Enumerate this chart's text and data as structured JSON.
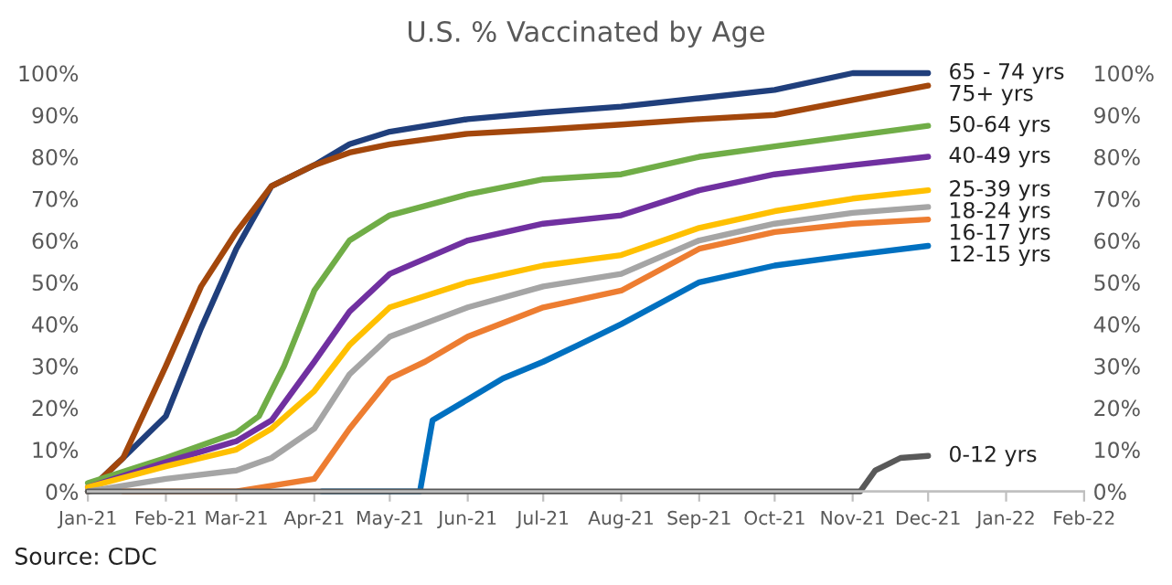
{
  "chart_data": {
    "type": "line",
    "title": "U.S. % Vaccinated by Age",
    "annotations": [
      "Source: CDC"
    ],
    "xlim": [
      "2021-01-01",
      "2022-02-01"
    ],
    "xticks": [
      {
        "value": "2021-01-01",
        "label": "Jan-21"
      },
      {
        "value": "2021-02-01",
        "label": "Feb-21"
      },
      {
        "value": "2021-03-01",
        "label": "Mar-21"
      },
      {
        "value": "2021-04-01",
        "label": "Apr-21"
      },
      {
        "value": "2021-05-01",
        "label": "May-21"
      },
      {
        "value": "2021-06-01",
        "label": "Jun-21"
      },
      {
        "value": "2021-07-01",
        "label": "Jul-21"
      },
      {
        "value": "2021-08-01",
        "label": "Aug-21"
      },
      {
        "value": "2021-09-01",
        "label": "Sep-21"
      },
      {
        "value": "2021-10-01",
        "label": "Oct-21"
      },
      {
        "value": "2021-11-01",
        "label": "Nov-21"
      },
      {
        "value": "2021-12-01",
        "label": "Dec-21"
      },
      {
        "value": "2022-01-01",
        "label": "Jan-22"
      },
      {
        "value": "2022-02-01",
        "label": "Feb-22"
      }
    ],
    "ylim": [
      0,
      100
    ],
    "yticks": [
      {
        "value": 0,
        "label": "0%"
      },
      {
        "value": 10,
        "label": "10%"
      },
      {
        "value": 20,
        "label": "20%"
      },
      {
        "value": 30,
        "label": "30%"
      },
      {
        "value": 40,
        "label": "40%"
      },
      {
        "value": 50,
        "label": "50%"
      },
      {
        "value": 60,
        "label": "60%"
      },
      {
        "value": 70,
        "label": "70%"
      },
      {
        "value": 80,
        "label": "80%"
      },
      {
        "value": 90,
        "label": "90%"
      },
      {
        "value": 100,
        "label": "100%"
      }
    ],
    "y2lim": [
      0,
      100
    ],
    "y2ticks": [
      {
        "value": 0,
        "label": "0%"
      },
      {
        "value": 10,
        "label": "10%"
      },
      {
        "value": 20,
        "label": "20%"
      },
      {
        "value": 30,
        "label": "30%"
      },
      {
        "value": 40,
        "label": "40%"
      },
      {
        "value": 50,
        "label": "50%"
      },
      {
        "value": 60,
        "label": "60%"
      },
      {
        "value": 70,
        "label": "70%"
      },
      {
        "value": 80,
        "label": "80%"
      },
      {
        "value": 90,
        "label": "90%"
      },
      {
        "value": 100,
        "label": "100%"
      }
    ],
    "grid": false,
    "legend": false,
    "marker": "none",
    "line_style": "solid",
    "series": [
      {
        "name": "65 - 74 yrs",
        "color": "#203f7c",
        "x": [
          "2021-01-01",
          "2021-01-15",
          "2021-02-01",
          "2021-02-15",
          "2021-03-01",
          "2021-03-15",
          "2021-04-01",
          "2021-04-15",
          "2021-05-01",
          "2021-06-01",
          "2021-07-01",
          "2021-08-01",
          "2021-09-01",
          "2021-10-01",
          "2021-11-01",
          "2021-12-01"
        ],
        "values": [
          0,
          8,
          18,
          39,
          58,
          73,
          78,
          83,
          86,
          89,
          90.6,
          92,
          94,
          96,
          100,
          100
        ]
      },
      {
        "name": "75+ yrs",
        "color": "#a3470c",
        "x": [
          "2021-01-01",
          "2021-01-15",
          "2021-02-01",
          "2021-02-15",
          "2021-03-01",
          "2021-03-15",
          "2021-04-01",
          "2021-04-15",
          "2021-05-01",
          "2021-06-01",
          "2021-07-01",
          "2021-08-01",
          "2021-09-01",
          "2021-10-01",
          "2021-11-01",
          "2021-12-01"
        ],
        "values": [
          0,
          8,
          30,
          49,
          62,
          73,
          78,
          81,
          83,
          85.5,
          86.5,
          87.7,
          89,
          90,
          93.6,
          97
        ]
      },
      {
        "name": "50-64 yrs",
        "color": "#70ad47",
        "x": [
          "2021-01-01",
          "2021-02-01",
          "2021-02-15",
          "2021-03-01",
          "2021-03-10",
          "2021-03-20",
          "2021-04-01",
          "2021-04-15",
          "2021-05-01",
          "2021-06-01",
          "2021-07-01",
          "2021-08-01",
          "2021-09-01",
          "2021-10-01",
          "2021-11-01",
          "2021-12-01"
        ],
        "values": [
          2,
          8,
          11,
          14,
          18,
          30,
          48,
          60,
          66,
          71,
          74.6,
          75.8,
          80,
          82.5,
          85,
          87.4
        ]
      },
      {
        "name": "40-49 yrs",
        "color": "#7030a0",
        "x": [
          "2021-01-01",
          "2021-02-01",
          "2021-03-01",
          "2021-03-15",
          "2021-04-01",
          "2021-04-15",
          "2021-05-01",
          "2021-06-01",
          "2021-07-01",
          "2021-08-01",
          "2021-09-01",
          "2021-10-01",
          "2021-11-01",
          "2021-12-01"
        ],
        "values": [
          1,
          7,
          12,
          17,
          31,
          43,
          52,
          60,
          64,
          66,
          72,
          75.8,
          78,
          80
        ]
      },
      {
        "name": "25-39 yrs",
        "color": "#ffc000",
        "x": [
          "2021-01-01",
          "2021-02-01",
          "2021-03-01",
          "2021-03-15",
          "2021-04-01",
          "2021-04-15",
          "2021-05-01",
          "2021-06-01",
          "2021-07-01",
          "2021-08-01",
          "2021-09-01",
          "2021-10-01",
          "2021-11-01",
          "2021-12-01"
        ],
        "values": [
          1,
          6,
          10,
          15,
          24,
          35,
          44,
          50,
          54,
          56.5,
          63,
          67,
          70,
          72
        ]
      },
      {
        "name": "18-24 yrs",
        "color": "#a5a5a5",
        "x": [
          "2021-01-01",
          "2021-02-01",
          "2021-03-01",
          "2021-03-15",
          "2021-04-01",
          "2021-04-15",
          "2021-05-01",
          "2021-06-01",
          "2021-07-01",
          "2021-08-01",
          "2021-09-01",
          "2021-10-01",
          "2021-11-01",
          "2021-12-01"
        ],
        "values": [
          0,
          3,
          5,
          8,
          15,
          28,
          37,
          44,
          49,
          52,
          60,
          64,
          66.6,
          68
        ]
      },
      {
        "name": "16-17 yrs",
        "color": "#ed7d31",
        "x": [
          "2021-01-15",
          "2021-03-01",
          "2021-04-01",
          "2021-04-15",
          "2021-05-01",
          "2021-05-15",
          "2021-06-01",
          "2021-07-01",
          "2021-08-01",
          "2021-09-01",
          "2021-10-01",
          "2021-11-01",
          "2021-12-01"
        ],
        "values": [
          0,
          0,
          3,
          15,
          27,
          31,
          37,
          44,
          48,
          58,
          62,
          64,
          65
        ]
      },
      {
        "name": "12-15 yrs",
        "color": "#0070c0",
        "x": [
          "2021-04-04",
          "2021-05-13",
          "2021-05-18",
          "2021-06-01",
          "2021-06-15",
          "2021-07-01",
          "2021-07-15",
          "2021-08-01",
          "2021-09-01",
          "2021-10-01",
          "2021-11-01",
          "2021-12-01"
        ],
        "values": [
          0,
          0,
          17,
          22,
          27,
          31,
          35,
          40,
          50,
          54,
          56.5,
          58.7
        ]
      },
      {
        "name": "0-12 yrs",
        "color": "#595959",
        "x": [
          "2021-01-01",
          "2021-11-04",
          "2021-11-10",
          "2021-11-20",
          "2021-12-01"
        ],
        "values": [
          0,
          0,
          5,
          8,
          8.5
        ]
      }
    ]
  }
}
